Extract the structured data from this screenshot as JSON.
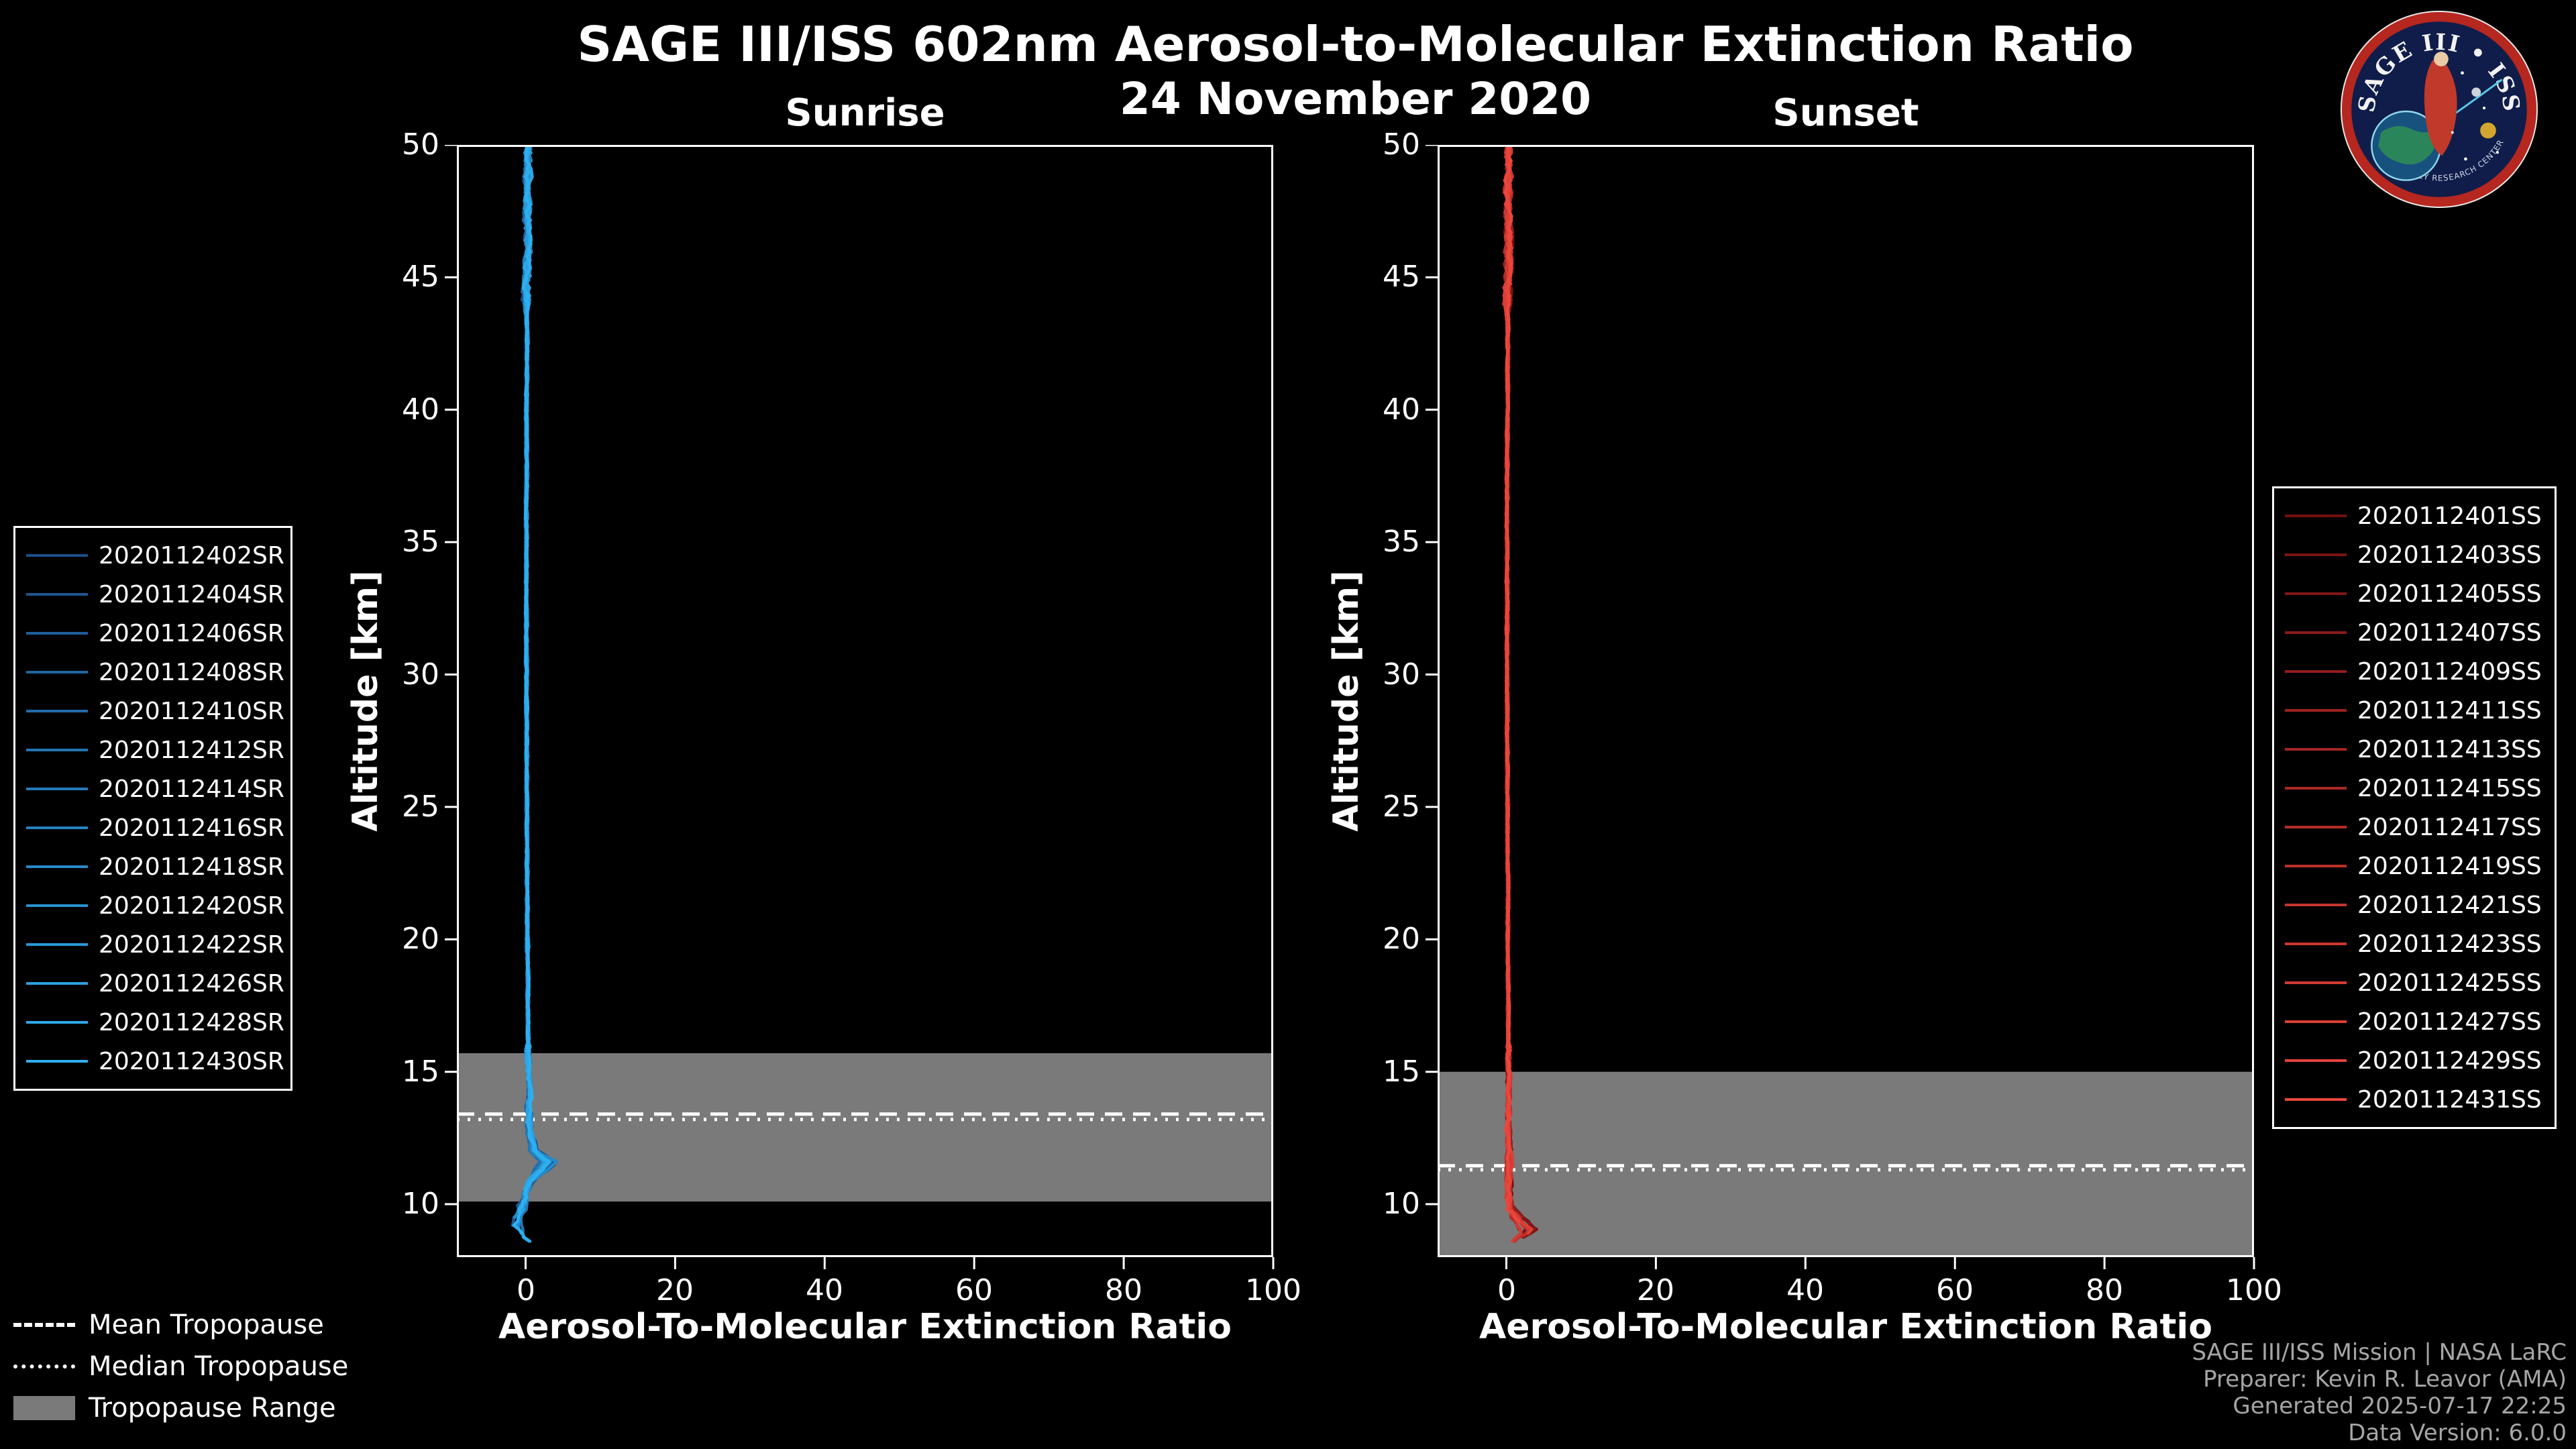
{
  "header": {
    "title": "SAGE III/ISS 602nm Aerosol-to-Molecular Extinction Ratio",
    "subtitle": "24 November 2020"
  },
  "logo": {
    "arc_title": "SAGE III • ISS",
    "arc_bottom": "NASA LANGLEY RESEARCH CENTER"
  },
  "tropopause_legend": {
    "mean_label": "Mean Tropopause",
    "median_label": "Median Tropopause",
    "range_label": "Tropopause Range",
    "range_color": "#7a7a7a"
  },
  "footer": {
    "lines": [
      "SAGE III/ISS Mission | NASA LaRC",
      "Preparer: Kevin R. Leavor (AMA)",
      "Generated 2025-07-17 22:25",
      "Data Version: 6.0.0"
    ]
  },
  "chart_data": {
    "type": "line",
    "title": "SAGE III/ISS 602nm Aerosol-to-Molecular Extinction Ratio",
    "subtitle": "24 November 2020",
    "xlabel": "Aerosol-To-Molecular Extinction Ratio",
    "ylabel": "Altitude [km]",
    "xlim": [
      -9.2,
      100
    ],
    "ylim": [
      8,
      50
    ],
    "xticks": [
      0,
      20,
      40,
      60,
      80,
      100
    ],
    "yticks": [
      10,
      15,
      20,
      25,
      30,
      35,
      40,
      45,
      50
    ],
    "grid": false,
    "legend_position": "outside-left-and-right",
    "panels": [
      {
        "id": "sunrise",
        "title": "Sunrise",
        "line_color_range": [
          "#1d4e89",
          "#2db0f0"
        ],
        "tropopause": {
          "mean_km": 13.4,
          "median_km": 13.2,
          "range_km": [
            10.1,
            15.7
          ]
        },
        "series": [
          {
            "name": "2020112402SR",
            "color": "#1d4e89"
          },
          {
            "name": "2020112404SR",
            "color": "#1e5691"
          },
          {
            "name": "2020112406SR",
            "color": "#1f5d99"
          },
          {
            "name": "2020112408SR",
            "color": "#2165a1"
          },
          {
            "name": "2020112410SR",
            "color": "#226ca9"
          },
          {
            "name": "2020112412SR",
            "color": "#2374b1"
          },
          {
            "name": "2020112414SR",
            "color": "#247bb8"
          },
          {
            "name": "2020112416SR",
            "color": "#2683c0"
          },
          {
            "name": "2020112418SR",
            "color": "#278ac8"
          },
          {
            "name": "2020112420SR",
            "color": "#2892d0"
          },
          {
            "name": "2020112422SR",
            "color": "#2999d8"
          },
          {
            "name": "2020112426SR",
            "color": "#2ba1e0"
          },
          {
            "name": "2020112428SR",
            "color": "#2ca8e8"
          },
          {
            "name": "2020112430SR",
            "color": "#2db0f0"
          }
        ],
        "profile_alt_ratio": [
          [
            50,
            0.4
          ],
          [
            48,
            0.2
          ],
          [
            46,
            0.3
          ],
          [
            44,
            0.1
          ],
          [
            42,
            0.2
          ],
          [
            40,
            0.1
          ],
          [
            38,
            0.15
          ],
          [
            36,
            0.1
          ],
          [
            34,
            0.1
          ],
          [
            32,
            0.1
          ],
          [
            30,
            0.1
          ],
          [
            28,
            0.15
          ],
          [
            26,
            0.15
          ],
          [
            24,
            0.2
          ],
          [
            22,
            0.2
          ],
          [
            20,
            0.25
          ],
          [
            18,
            0.3
          ],
          [
            16,
            0.35
          ],
          [
            14.5,
            0.45
          ],
          [
            13.5,
            0.55
          ],
          [
            12.6,
            0.9
          ],
          [
            12.0,
            1.6
          ],
          [
            11.6,
            4.3
          ],
          [
            11.2,
            2.4
          ],
          [
            10.8,
            0.6
          ],
          [
            10.2,
            -0.2
          ],
          [
            9.7,
            -1.2
          ],
          [
            9.2,
            -2.2
          ],
          [
            8.8,
            -0.6
          ],
          [
            8.5,
            1.4
          ]
        ]
      },
      {
        "id": "sunset",
        "title": "Sunset",
        "line_color_range": [
          "#731010",
          "#eb463c"
        ],
        "tropopause": {
          "mean_km": 11.45,
          "median_km": 11.3,
          "range_km": [
            8.0,
            15.0
          ]
        },
        "series": [
          {
            "name": "2020112401SS",
            "color": "#731010"
          },
          {
            "name": "2020112403SS",
            "color": "#7b1413"
          },
          {
            "name": "2020112405SS",
            "color": "#831717"
          },
          {
            "name": "2020112407SS",
            "color": "#8b1b19"
          },
          {
            "name": "2020112409SS",
            "color": "#931e1c"
          },
          {
            "name": "2020112411SS",
            "color": "#9b221f"
          },
          {
            "name": "2020112413SS",
            "color": "#a32622"
          },
          {
            "name": "2020112415SS",
            "color": "#ab2924"
          },
          {
            "name": "2020112417SS",
            "color": "#b32d27"
          },
          {
            "name": "2020112419SS",
            "color": "#bb302a"
          },
          {
            "name": "2020112421SS",
            "color": "#c3342d"
          },
          {
            "name": "2020112423SS",
            "color": "#cb3830"
          },
          {
            "name": "2020112425SS",
            "color": "#d33b33"
          },
          {
            "name": "2020112427SS",
            "color": "#db3f36"
          },
          {
            "name": "2020112429SS",
            "color": "#e34239"
          },
          {
            "name": "2020112431SS",
            "color": "#eb463c"
          }
        ],
        "profile_alt_ratio": [
          [
            50,
            0.4
          ],
          [
            48,
            0.25
          ],
          [
            46,
            0.3
          ],
          [
            44,
            0.15
          ],
          [
            42,
            0.2
          ],
          [
            40,
            0.15
          ],
          [
            38,
            0.1
          ],
          [
            36,
            0.1
          ],
          [
            34,
            0.1
          ],
          [
            32,
            0.1
          ],
          [
            30,
            0.1
          ],
          [
            28,
            0.1
          ],
          [
            26,
            0.15
          ],
          [
            24,
            0.15
          ],
          [
            22,
            0.2
          ],
          [
            20,
            0.2
          ],
          [
            18,
            0.25
          ],
          [
            16,
            0.3
          ],
          [
            14,
            0.35
          ],
          [
            12.5,
            0.45
          ],
          [
            11.5,
            0.55
          ],
          [
            10.5,
            0.5
          ],
          [
            9.8,
            0.9
          ],
          [
            9.3,
            2.8
          ],
          [
            9.0,
            4.2
          ],
          [
            8.7,
            2.0
          ],
          [
            8.5,
            0.3
          ],
          [
            8.4,
            -0.6
          ]
        ]
      }
    ]
  }
}
